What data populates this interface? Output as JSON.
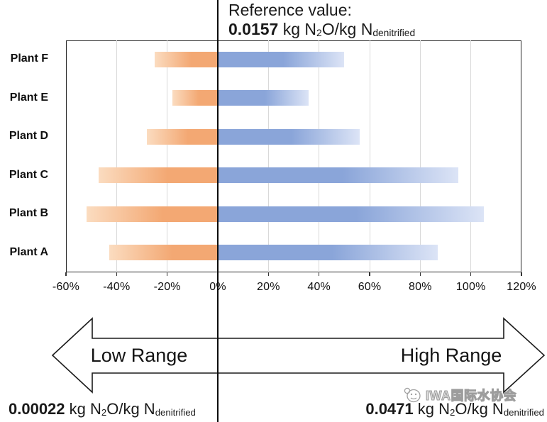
{
  "reference": {
    "label": "Reference value:",
    "value": "0.0157"
  },
  "unit": {
    "p1": " kg N",
    "s1": "2",
    "p2": "O/kg N",
    "s2": "denitrified"
  },
  "chart_data": {
    "type": "bar",
    "subtype": "diverging-horizontal-tornado",
    "title": "Reference value: 0.0157 kg N2O/kg Ndenitrified",
    "categories": [
      "Plant F",
      "Plant E",
      "Plant D",
      "Plant C",
      "Plant B",
      "Plant A"
    ],
    "series": [
      {
        "name": "Low Range",
        "values": [
          -25,
          -18,
          -28,
          -47,
          -52,
          -43
        ]
      },
      {
        "name": "High Range",
        "values": [
          50,
          36,
          56,
          95,
          105,
          87
        ]
      }
    ],
    "x_unit": "%",
    "xticks": [
      -60,
      -40,
      -20,
      0,
      20,
      40,
      60,
      80,
      100,
      120
    ],
    "xlim": [
      -60,
      120
    ],
    "reference_line_x": 0,
    "grid": true,
    "legend_position": "none"
  },
  "arrow": {
    "low_label": "Low Range",
    "high_label": "High Range"
  },
  "annotations": {
    "low_value": "0.00022",
    "high_value": "0.0471"
  },
  "watermark": {
    "text": "IWA国际水协会"
  },
  "colors": {
    "low_bar": "#f3a873",
    "low_bar_light": "#fbdcc0",
    "high_bar": "#8aa5d9",
    "high_bar_light": "#dce4f6",
    "grid": "#d9d9d9",
    "frame": "#262626",
    "reference_line": "#0d0d0d"
  }
}
